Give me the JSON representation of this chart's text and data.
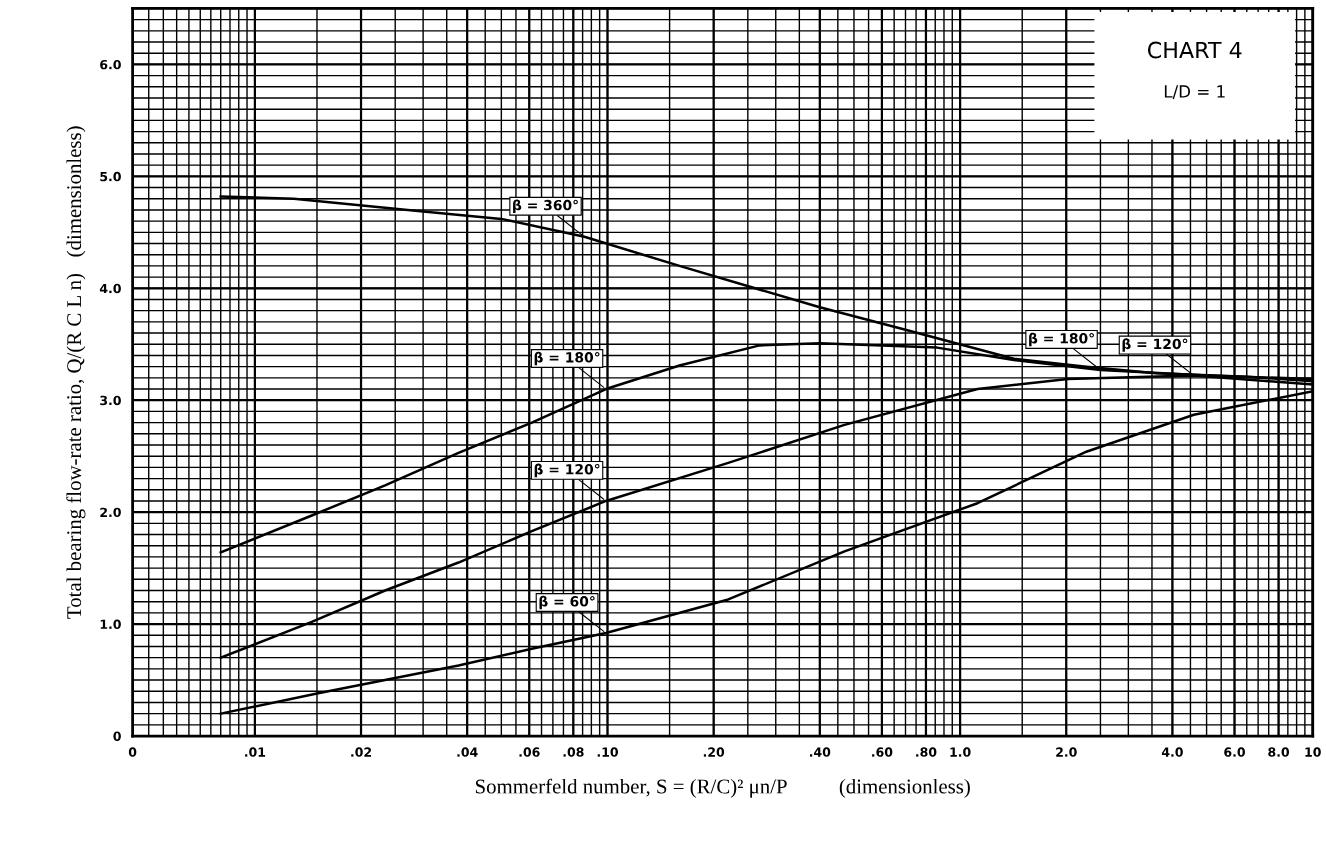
{
  "chart_data": {
    "type": "line",
    "xlabel": "Sommerfeld number, S = (R/C)² μn/P          (dimensionless)",
    "ylabel": "Total bearing flow-rate ratio, Q/(R C L n)   (dimensionless)",
    "log": "x",
    "grid": true,
    "marker": "none",
    "line_style": "solid",
    "xlim": [
      0.0045,
      10
    ],
    "ylim": [
      0,
      6.5
    ],
    "xticks": [
      {
        "value": 0.0045,
        "label": "0"
      },
      {
        "value": 0.01,
        "label": ".01"
      },
      {
        "value": 0.02,
        "label": ".02"
      },
      {
        "value": 0.04,
        "label": ".04"
      },
      {
        "value": 0.06,
        "label": ".06"
      },
      {
        "value": 0.08,
        "label": ".08"
      },
      {
        "value": 0.1,
        "label": ".10"
      },
      {
        "value": 0.2,
        "label": ".20"
      },
      {
        "value": 0.4,
        "label": ".40"
      },
      {
        "value": 0.6,
        "label": ".60"
      },
      {
        "value": 0.8,
        "label": ".80"
      },
      {
        "value": 1,
        "label": "1.0"
      },
      {
        "value": 2,
        "label": "2.0"
      },
      {
        "value": 4,
        "label": "4.0"
      },
      {
        "value": 6,
        "label": "6.0"
      },
      {
        "value": 8,
        "label": "8.0"
      },
      10
    ],
    "yticks": [
      0,
      {
        "value": 1,
        "label": "1.0"
      },
      {
        "value": 2,
        "label": "2.0"
      },
      {
        "value": 3,
        "label": "3.0"
      },
      {
        "value": 4,
        "label": "4.0"
      },
      {
        "value": 5,
        "label": "5.0"
      },
      {
        "value": 6,
        "label": "6.0"
      }
    ],
    "series": [
      {
        "color": "#000000",
        "x": [
          0.008,
          0.0129,
          0.029,
          0.05,
          0.086,
          0.16,
          0.4,
          0.7,
          1.42,
          2.28,
          3.6,
          6.5,
          10
        ],
        "values": [
          4.82,
          4.8,
          4.69,
          4.62,
          4.46,
          4.2,
          3.83,
          3.63,
          3.37,
          3.3,
          3.24,
          3.21,
          3.17
        ]
      },
      {
        "color": "#000000",
        "x": [
          0.008,
          0.0145,
          0.0234,
          0.0378,
          0.061,
          0.099,
          0.16,
          0.27,
          0.4,
          0.86,
          1.42,
          2.5,
          5,
          10
        ],
        "values": [
          1.64,
          1.97,
          2.24,
          2.53,
          2.8,
          3.1,
          3.31,
          3.49,
          3.51,
          3.47,
          3.36,
          3.27,
          3.22,
          3.19
        ]
      },
      {
        "color": "#000000",
        "x": [
          0.008,
          0.0145,
          0.0234,
          0.0378,
          0.061,
          0.099,
          0.22,
          0.47,
          1.12,
          2.02,
          4.6,
          10
        ],
        "values": [
          0.7,
          1.02,
          1.3,
          1.55,
          1.83,
          2.1,
          2.44,
          2.78,
          3.1,
          3.19,
          3.22,
          3.14
        ]
      },
      {
        "color": "#000000",
        "x": [
          0.008,
          0.015,
          0.0234,
          0.0378,
          0.061,
          0.099,
          0.22,
          0.47,
          1.12,
          2.28,
          4.6,
          10
        ],
        "values": [
          0.2,
          0.38,
          0.5,
          0.63,
          0.78,
          0.92,
          1.22,
          1.65,
          2.08,
          2.54,
          2.87,
          3.08
        ]
      }
    ],
    "annotations": [
      "CHART 4",
      "L/D = 1",
      {
        "text": "β = 360°",
        "x": 0.086,
        "y": 4.46
      },
      {
        "text": "β = 180°",
        "x": 0.099,
        "y": 3.1
      },
      {
        "text": "β = 120°",
        "x": 0.099,
        "y": 2.1
      },
      {
        "text": "β = 60°",
        "x": 0.099,
        "y": 0.92
      },
      {
        "text": "β = 180°",
        "x": 2.5,
        "y": 3.27
      },
      {
        "text": "β = 120°",
        "x": 4.6,
        "y": 3.22
      }
    ]
  }
}
